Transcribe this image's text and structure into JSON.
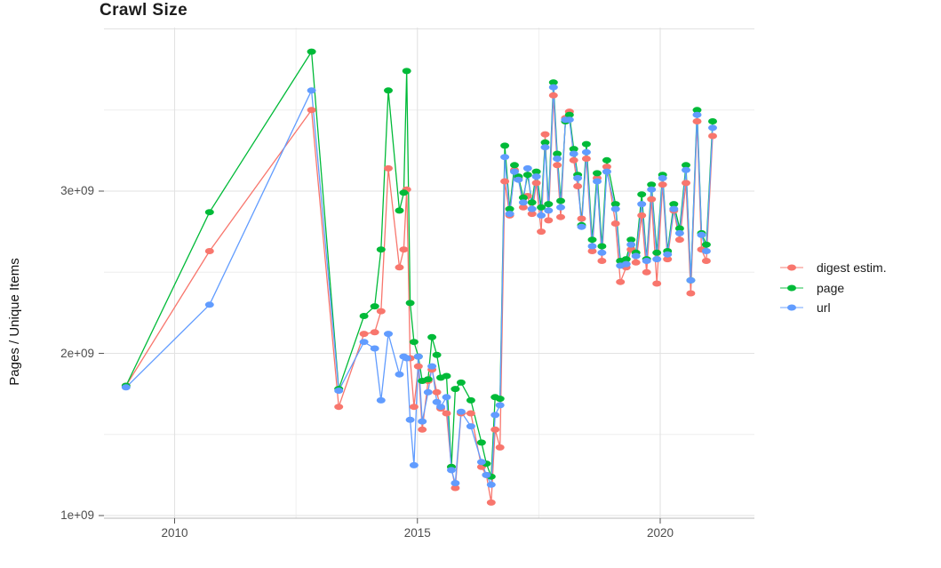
{
  "chart_data": {
    "type": "line",
    "title": "Crawl Size",
    "ylabel": "Pages / Unique Items",
    "xlabel": "",
    "grid": true,
    "legend_position": "right",
    "y_unit_multiplier": 1000000000,
    "y_ticks": {
      "labels": [
        "1e+09",
        "2e+09",
        "3e+09"
      ],
      "values": [
        1,
        2,
        3
      ]
    },
    "y_grid_major": [
      1,
      2,
      3,
      4
    ],
    "y_grid_minor": [
      1.5,
      2.5,
      3.5
    ],
    "x_ticks": {
      "labels": [
        "2010",
        "2015",
        "2020"
      ],
      "years": [
        2010,
        2015,
        2020
      ]
    },
    "x_grid_major": [
      2010,
      2015,
      2020
    ],
    "x_grid_minor": [
      2012.5,
      2017.5
    ],
    "x_range_years": [
      2008.85,
      2021.9
    ],
    "y_range": [
      0.98,
      4.02
    ],
    "x_years": [
      2009.0,
      2010.72,
      2012.82,
      2013.38,
      2013.9,
      2014.12,
      2014.25,
      2014.4,
      2014.63,
      2014.72,
      2014.78,
      2014.85,
      2014.93,
      2015.02,
      2015.1,
      2015.22,
      2015.3,
      2015.4,
      2015.48,
      2015.6,
      2015.7,
      2015.78,
      2015.9,
      2016.1,
      2016.32,
      2016.42,
      2016.52,
      2016.6,
      2016.7,
      2016.8,
      2016.9,
      2017.0,
      2017.08,
      2017.18,
      2017.27,
      2017.36,
      2017.45,
      2017.55,
      2017.63,
      2017.7,
      2017.8,
      2017.88,
      2017.95,
      2018.05,
      2018.13,
      2018.22,
      2018.3,
      2018.38,
      2018.48,
      2018.6,
      2018.7,
      2018.8,
      2018.9,
      2019.08,
      2019.18,
      2019.3,
      2019.4,
      2019.5,
      2019.62,
      2019.72,
      2019.82,
      2019.93,
      2020.05,
      2020.15,
      2020.28,
      2020.4,
      2020.53,
      2020.63,
      2020.76,
      2020.85,
      2020.95,
      2021.08
    ],
    "series": [
      {
        "name": "digest estim.",
        "color": "#F8766D",
        "values": [
          1.8,
          2.63,
          3.5,
          1.67,
          2.12,
          2.13,
          2.26,
          3.14,
          2.53,
          2.64,
          3.01,
          1.97,
          1.67,
          1.92,
          1.53,
          1.83,
          1.9,
          1.76,
          1.66,
          1.63,
          1.3,
          1.17,
          1.63,
          1.63,
          1.3,
          1.25,
          1.08,
          1.53,
          1.42,
          3.06,
          2.85,
          3.13,
          3.08,
          2.9,
          2.97,
          2.86,
          3.05,
          2.75,
          3.35,
          2.82,
          3.59,
          3.16,
          2.84,
          3.45,
          3.49,
          3.19,
          3.03,
          2.83,
          3.2,
          2.63,
          3.08,
          2.57,
          3.15,
          2.8,
          2.44,
          2.53,
          2.64,
          2.56,
          2.85,
          2.5,
          2.95,
          2.43,
          3.04,
          2.58,
          2.88,
          2.7,
          3.05,
          2.37,
          3.43,
          2.64,
          2.57,
          3.34
        ]
      },
      {
        "name": "page",
        "color": "#00BA38",
        "values": [
          1.8,
          2.87,
          3.86,
          1.78,
          2.23,
          2.29,
          2.64,
          3.62,
          2.88,
          2.99,
          3.74,
          2.31,
          2.07,
          1.98,
          1.83,
          1.84,
          2.1,
          1.99,
          1.85,
          1.86,
          1.3,
          1.78,
          1.82,
          1.71,
          1.45,
          1.32,
          1.24,
          1.73,
          1.72,
          3.28,
          2.89,
          3.16,
          3.09,
          2.96,
          3.1,
          2.93,
          3.12,
          2.9,
          3.3,
          2.92,
          3.67,
          3.23,
          2.94,
          3.43,
          3.47,
          3.26,
          3.1,
          2.79,
          3.29,
          2.7,
          3.11,
          2.66,
          3.19,
          2.92,
          2.57,
          2.58,
          2.7,
          2.62,
          2.98,
          2.58,
          3.04,
          2.62,
          3.1,
          2.63,
          2.92,
          2.77,
          3.16,
          2.45,
          3.5,
          2.74,
          2.67,
          3.43
        ]
      },
      {
        "name": "url",
        "color": "#619CFF",
        "values": [
          1.79,
          2.3,
          3.62,
          1.77,
          2.07,
          2.03,
          1.71,
          2.12,
          1.87,
          1.98,
          1.97,
          1.59,
          1.31,
          1.98,
          1.58,
          1.76,
          1.92,
          1.7,
          1.67,
          1.73,
          1.28,
          1.2,
          1.64,
          1.55,
          1.33,
          1.25,
          1.19,
          1.62,
          1.68,
          3.21,
          2.86,
          3.12,
          3.07,
          2.93,
          3.14,
          2.89,
          3.09,
          2.85,
          3.27,
          2.88,
          3.64,
          3.2,
          2.9,
          3.44,
          3.44,
          3.23,
          3.08,
          2.78,
          3.24,
          2.66,
          3.06,
          2.62,
          3.12,
          2.89,
          2.54,
          2.55,
          2.67,
          2.6,
          2.92,
          2.57,
          3.01,
          2.58,
          3.08,
          2.61,
          2.89,
          2.74,
          3.13,
          2.45,
          3.47,
          2.73,
          2.63,
          3.39
        ]
      }
    ]
  },
  "colors": {
    "background": "#ffffff",
    "grid_major": "#e2e2e2",
    "grid_minor": "#ededed",
    "axis_line": "#b8b8b8",
    "tick_mark": "#545454",
    "tick_text": "#4d4d4d",
    "title_text": "#1c1c1c"
  }
}
